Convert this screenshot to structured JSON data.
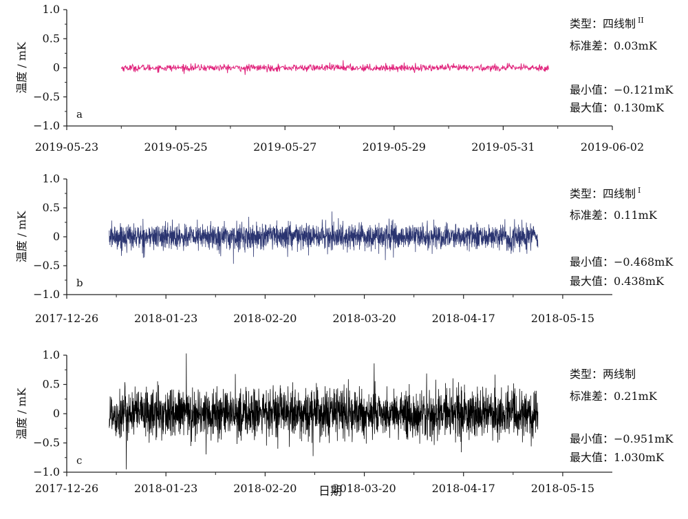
{
  "figure": {
    "xlabel": "日期"
  },
  "chart_data": [
    {
      "panel": "a",
      "type": "line",
      "series_color": "#e0207a",
      "ylabel": "温度 / mK",
      "ylim": [
        -1.0,
        1.0
      ],
      "yticks": [
        -1.0,
        -0.5,
        0,
        0.5,
        1.0
      ],
      "yticklabels": [
        "−1.0",
        "−0.5",
        "0",
        "0.5",
        "1.0"
      ],
      "xlim": [
        "2019-05-23",
        "2019-06-02"
      ],
      "xticks": [
        "2019-05-23",
        "2019-05-25",
        "2019-05-27",
        "2019-05-29",
        "2019-05-31",
        "2019-06-02"
      ],
      "xticklabels": [
        "2019-05-23",
        "2019-05-25",
        "2019-05-27",
        "2019-05-29",
        "2019-05-31",
        "2019-06-02"
      ],
      "x_start": "2019-05-24",
      "x_end": "2019-05-31 20:00",
      "std": 0.03,
      "min": -0.121,
      "max": 0.13,
      "ann_type_label": "类型：",
      "ann_type_value": "四线制",
      "ann_type_sup": "II",
      "ann_std_label": "标准差：",
      "ann_std_value": "0.03mK",
      "ann_min_label": "最小值：",
      "ann_min_value": "−0.121mK",
      "ann_max_label": "最大值：",
      "ann_max_value": "0.130mK"
    },
    {
      "panel": "b",
      "type": "line",
      "series_color": "#2a3470",
      "ylabel": "温度 / mK",
      "ylim": [
        -1.0,
        1.0
      ],
      "yticks": [
        -1.0,
        -0.5,
        0,
        0.5,
        1.0
      ],
      "yticklabels": [
        "−1.0",
        "−0.5",
        "0",
        "0.5",
        "1.0"
      ],
      "xlim": [
        "2017-12-26",
        "2018-05-29"
      ],
      "xticks": [
        "2017-12-26",
        "2018-01-23",
        "2018-02-20",
        "2018-03-20",
        "2018-04-17",
        "2018-05-15"
      ],
      "xticklabels": [
        "2017-12-26",
        "2018-01-23",
        "2018-02-20",
        "2018-03-20",
        "2018-04-17",
        "2018-05-15"
      ],
      "x_start": "2018-01-07",
      "x_end": "2018-05-08",
      "std": 0.11,
      "min": -0.468,
      "max": 0.438,
      "ann_type_label": "类型：",
      "ann_type_value": "四线制",
      "ann_type_sup": "I",
      "ann_std_label": "标准差：",
      "ann_std_value": "0.11mK",
      "ann_min_label": "最小值：",
      "ann_min_value": "−0.468mK",
      "ann_max_label": "最大值：",
      "ann_max_value": "0.438mK"
    },
    {
      "panel": "c",
      "type": "line",
      "series_color": "#000000",
      "ylabel": "温度 / mK",
      "ylim": [
        -1.0,
        1.0
      ],
      "yticks": [
        -1.0,
        -0.5,
        0,
        0.5,
        1.0
      ],
      "yticklabels": [
        "−1.0",
        "−0.5",
        "0",
        "0.5",
        "1.0"
      ],
      "xlim": [
        "2017-12-26",
        "2018-05-29"
      ],
      "xticks": [
        "2017-12-26",
        "2018-01-23",
        "2018-02-20",
        "2018-03-20",
        "2018-04-17",
        "2018-05-15"
      ],
      "xticklabels": [
        "2017-12-26",
        "2018-01-23",
        "2018-02-20",
        "2018-03-20",
        "2018-04-17",
        "2018-05-15"
      ],
      "x_start": "2018-01-07",
      "x_end": "2018-05-08",
      "std": 0.21,
      "min": -0.951,
      "max": 1.03,
      "ann_type_label": "类型：",
      "ann_type_value": "两线制",
      "ann_type_sup": "",
      "ann_std_label": "标准差：",
      "ann_std_value": "0.21mK",
      "ann_min_label": "最小值：",
      "ann_min_value": "−0.951mK",
      "ann_max_label": "最大值：",
      "ann_max_value": "1.030mK"
    }
  ]
}
